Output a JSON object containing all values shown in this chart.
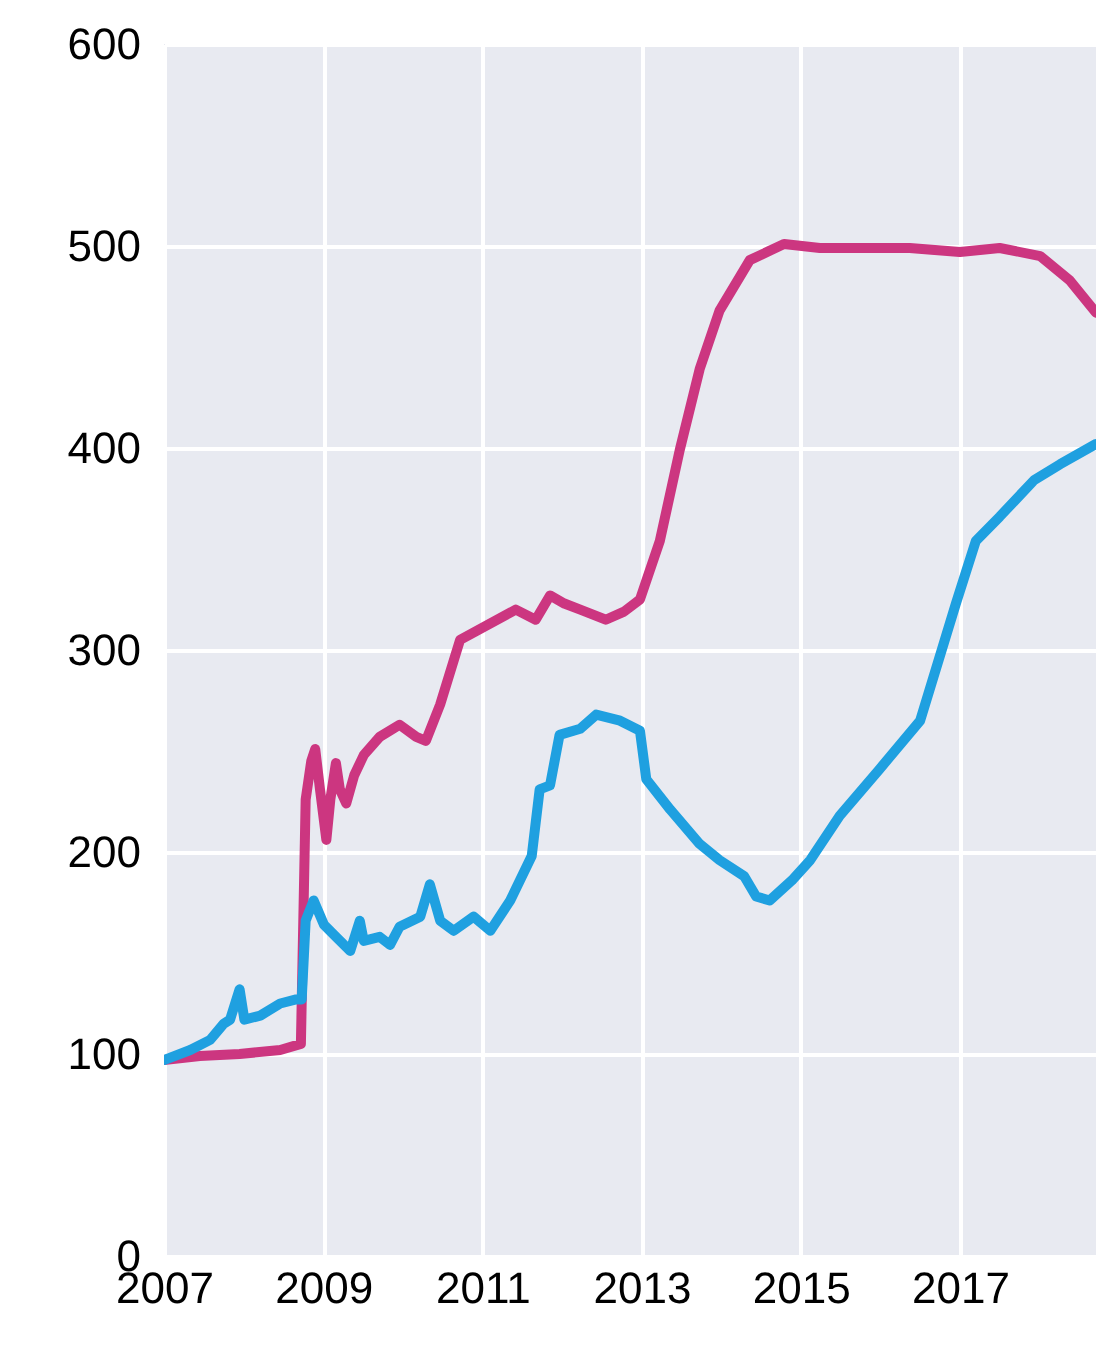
{
  "chart_data": {
    "type": "line",
    "xlim": [
      2007,
      2018.71
    ],
    "xticks": [
      2007,
      2009,
      2011,
      2013,
      2015,
      2017
    ],
    "ylim": [
      0,
      600
    ],
    "yticks": [
      0,
      100,
      200,
      300,
      400,
      500,
      600
    ],
    "grid": true,
    "legend": false,
    "marker": "none",
    "line_style": "solid",
    "series": [
      {
        "color": "#cc3680",
        "x": [
          2007.0,
          2007.45,
          2007.95,
          2008.46,
          2008.72,
          2008.78,
          2008.85,
          2008.9,
          2008.96,
          2009.04,
          2009.09,
          2009.16,
          2009.21,
          2009.29,
          2009.39,
          2009.51,
          2009.71,
          2009.96,
          2010.17,
          2010.29,
          2010.47,
          2010.72,
          2011.42,
          2011.67,
          2011.85,
          2012.03,
          2012.23,
          2012.55,
          2012.78,
          2012.98,
          2013.23,
          2013.48,
          2013.73,
          2013.98,
          2014.36,
          2014.79,
          2015.24,
          2015.74,
          2016.37,
          2017.0,
          2017.5,
          2018.01,
          2018.38,
          2018.71
        ],
        "values": [
          97,
          99,
          100,
          102,
          105,
          226,
          245,
          251,
          231,
          206,
          226,
          244,
          231,
          224,
          238,
          248,
          257,
          263,
          257,
          255,
          273,
          305,
          320,
          315,
          327,
          323,
          320,
          315,
          319,
          325,
          354,
          399,
          439,
          468,
          493,
          501,
          499,
          499,
          499,
          497,
          499,
          495,
          483,
          467
        ]
      },
      {
        "color": "#1fa0e0",
        "x": [
          2007.0,
          2007.33,
          2007.58,
          2007.75,
          2007.83,
          2007.95,
          2008.01,
          2008.21,
          2008.46,
          2008.66,
          2008.73,
          2008.78,
          2008.88,
          2009.01,
          2009.16,
          2009.34,
          2009.46,
          2009.51,
          2009.71,
          2009.84,
          2009.96,
          2010.22,
          2010.34,
          2010.47,
          2010.64,
          2010.89,
          2011.1,
          2011.35,
          2011.62,
          2011.72,
          2011.85,
          2011.97,
          2012.23,
          2012.43,
          2012.73,
          2012.98,
          2013.06,
          2013.36,
          2013.73,
          2013.98,
          2014.29,
          2014.44,
          2014.61,
          2014.89,
          2015.12,
          2015.49,
          2015.99,
          2016.5,
          2016.95,
          2017.2,
          2017.5,
          2017.93,
          2018.26,
          2018.71
        ],
        "values": [
          97,
          102,
          107,
          115,
          117,
          132,
          117,
          119,
          125,
          127,
          127,
          166,
          176,
          164,
          158,
          151,
          166,
          156,
          158,
          154,
          163,
          168,
          184,
          166,
          161,
          168,
          161,
          176,
          198,
          231,
          233,
          258,
          261,
          268,
          265,
          260,
          236,
          221,
          204,
          196,
          188,
          178,
          176,
          186,
          196,
          218,
          241,
          265,
          323,
          354,
          366,
          384,
          392,
          402
        ]
      }
    ]
  }
}
